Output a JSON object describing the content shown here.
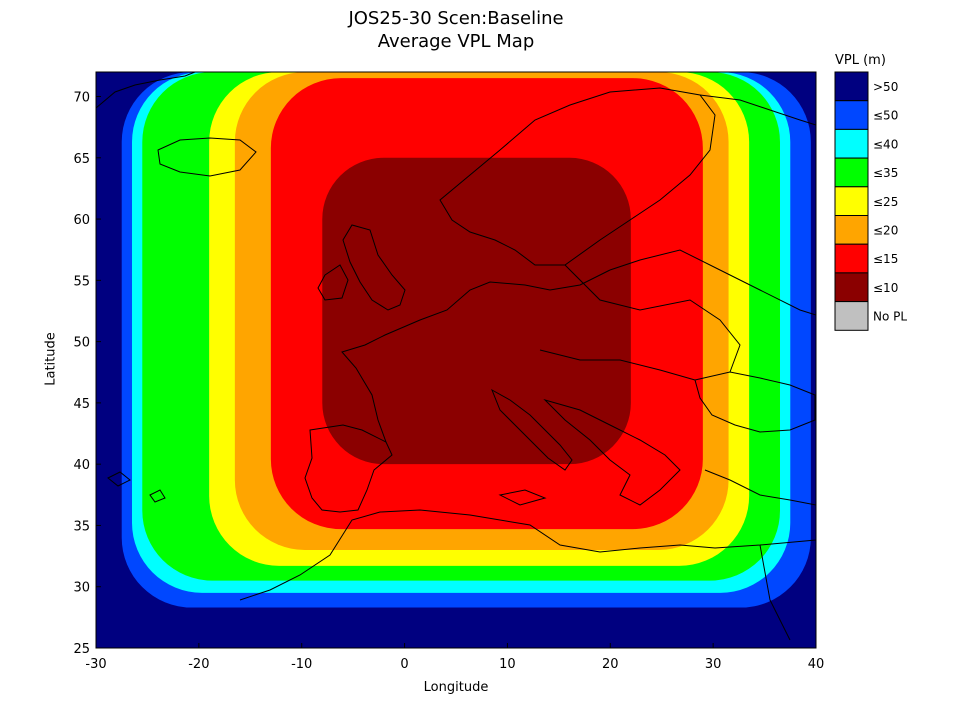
{
  "chart_data": {
    "type": "heatmap",
    "title": "JOS25-30 Scen:Baseline",
    "subtitle": "Average VPL Map",
    "xlabel": "Longitude",
    "ylabel": "Latitude",
    "xlim": [
      -30,
      40
    ],
    "ylim": [
      25,
      72
    ],
    "xticks": [
      "-30",
      "-20",
      "-10",
      "0",
      "10",
      "20",
      "30",
      "40"
    ],
    "yticks": [
      "25",
      "30",
      "35",
      "40",
      "45",
      "50",
      "55",
      "60",
      "65",
      "70"
    ],
    "grid": false,
    "legend": {
      "title": "VPL (m)",
      "placement": "right",
      "entries": [
        {
          "label": ">50",
          "color": "#000080"
        },
        {
          "label": "≤50",
          "color": "#0047ff"
        },
        {
          "label": "≤40",
          "color": "#00ffff"
        },
        {
          "label": "≤35",
          "color": "#00ff00"
        },
        {
          "label": "≤25",
          "color": "#ffff00"
        },
        {
          "label": "≤20",
          "color": "#ffa500"
        },
        {
          "label": "≤15",
          "color": "#ff0000"
        },
        {
          "label": "≤10",
          "color": "#8b0000"
        },
        {
          "label": "No PL",
          "color": "#c0c0c0"
        }
      ]
    },
    "contour_bounds_lon_lat": {
      "≤50": {
        "west": -27.5,
        "east": 39.5,
        "south": 28.3,
        "north": 72
      },
      "≤40": {
        "west": -26.5,
        "east": 37.5,
        "south": 29.5,
        "north": 72
      },
      "≤35": {
        "west": -25.5,
        "east": 36.5,
        "south": 30.5,
        "north": 72
      },
      "≤25": {
        "west": -19,
        "east": 33.5,
        "south": 31.7,
        "north": 72
      },
      "≤20": {
        "west": -16.5,
        "east": 31.5,
        "south": 33,
        "north": 72
      },
      "≤15": {
        "west": -13,
        "east": 29,
        "south": 34.7,
        "north": 71.5
      },
      "≤10": {
        "west": -8,
        "east": 22,
        "south": 40,
        "north": 65
      }
    }
  }
}
